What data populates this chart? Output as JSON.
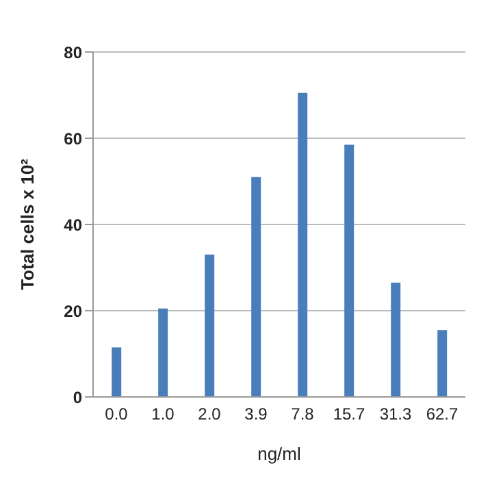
{
  "chart_data": {
    "type": "bar",
    "xlabel": "ng/ml",
    "ylabel": "Total cells x 10²",
    "categories": [
      "0.0",
      "1.0",
      "2.0",
      "3.9",
      "7.8",
      "15.7",
      "31.3",
      "62.7"
    ],
    "values": [
      11.5,
      20.5,
      33,
      51,
      70.5,
      58.5,
      26.5,
      15.5
    ],
    "color": "#4a7ebb",
    "ylim": [
      0,
      80
    ],
    "yticks": [
      0,
      20,
      40,
      60,
      80
    ],
    "grid": "y"
  }
}
